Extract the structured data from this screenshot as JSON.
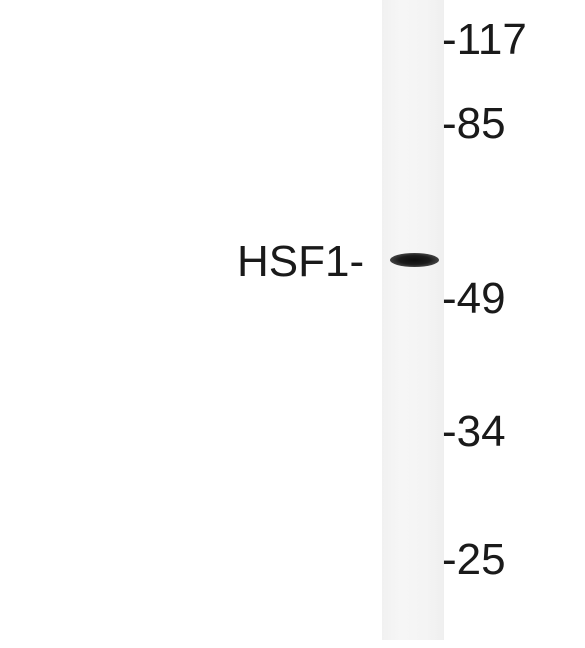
{
  "blot": {
    "protein_label": "HSF1-",
    "markers": [
      "-117",
      "-85",
      "-49",
      "-34",
      "-25"
    ]
  },
  "colors": {
    "background": "#ffffff",
    "lane": "#f4f4f4",
    "band": "#111111",
    "text": "#1a1a1a"
  }
}
